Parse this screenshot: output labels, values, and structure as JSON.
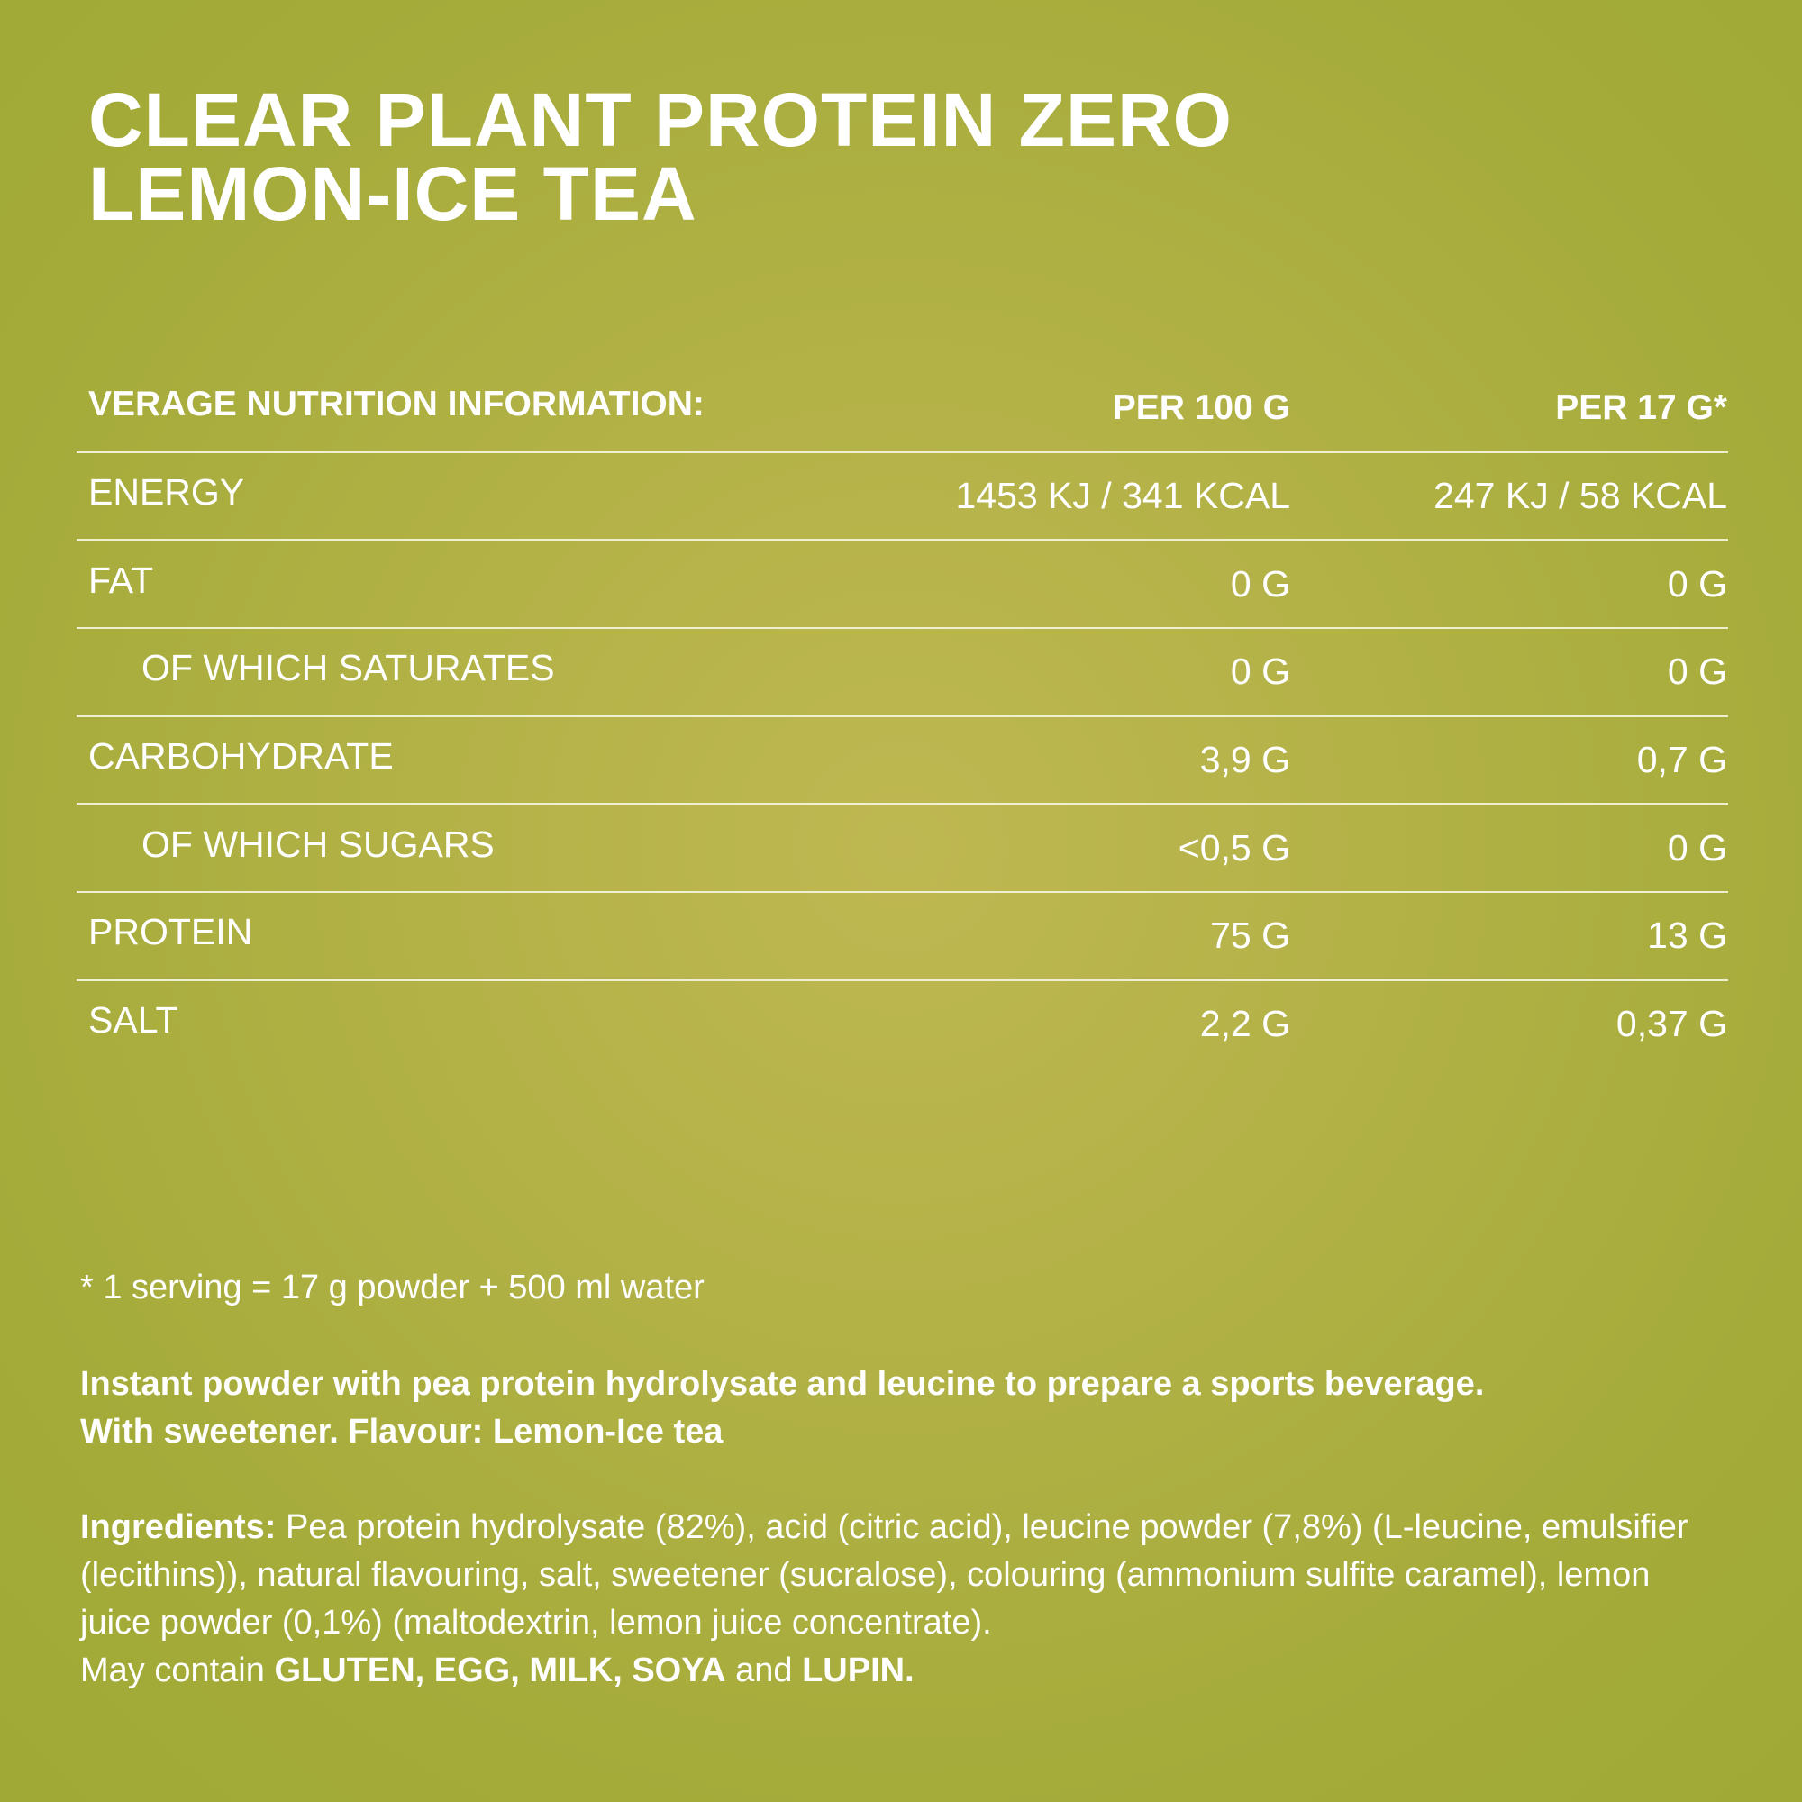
{
  "title": [
    "CLEAR PLANT PROTEIN ZERO",
    "LEMON-ICE TEA"
  ],
  "table": {
    "header": [
      "VERAGE NUTRITION INFORMATION:",
      "PER 100 G",
      "PER 17 G*"
    ],
    "rows": [
      [
        "ENERGY",
        "1453 KJ / 341 KCAL",
        "247 KJ / 58 KCAL"
      ],
      [
        "FAT",
        "0 G",
        "0 G"
      ],
      [
        "OF WHICH SATURATES",
        "0 G",
        "0 G"
      ],
      [
        "CARBOHYDRATE",
        "3,9 G",
        "0,7 G"
      ],
      [
        "OF WHICH SUGARS",
        "<0,5 G",
        "0 G"
      ],
      [
        "PROTEIN",
        "75 G",
        "13 G"
      ],
      [
        "SALT",
        "2,2 G",
        "0,37 G"
      ]
    ]
  },
  "footnote": "* 1 serving = 17 g powder + 500 ml water",
  "description": [
    "Instant powder with pea protein hydrolysate and leucine to prepare a sports beverage.",
    "With sweetener. Flavour: Lemon-Ice tea"
  ],
  "ingredients": {
    "label": "Ingredients:",
    "text": "Pea protein hydrolysate (82%), acid (citric acid), leucine powder (7,8%) (L-leucine, emulsifier (lecithins)), natural flavouring, salt, sweetener (sucralose), colouring (ammonium sulfite caramel), lemon juice powder (0,1%) (maltodextrin, lemon juice concentrate).",
    "allergen_note": [
      "May contain",
      "GLUTEN, EGG, MILK, SOYA",
      "and",
      "LUPIN."
    ]
  }
}
